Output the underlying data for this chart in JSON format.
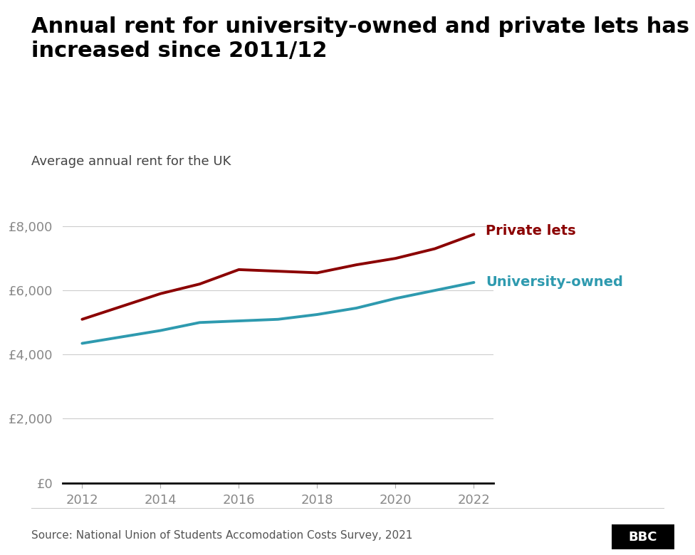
{
  "title": "Annual rent for university-owned and private lets has\nincreased since 2011/12",
  "subtitle": "Average annual rent for the UK",
  "source": "Source: National Union of Students Accomodation Costs Survey, 2021",
  "years": [
    2012,
    2013,
    2014,
    2015,
    2016,
    2017,
    2018,
    2019,
    2020,
    2021,
    2022
  ],
  "private_lets": [
    5100,
    5500,
    5900,
    6200,
    6650,
    6600,
    6550,
    6800,
    7000,
    7300,
    7750
  ],
  "university_owned": [
    4350,
    4550,
    4750,
    5000,
    5050,
    5100,
    5250,
    5450,
    5750,
    6000,
    6250
  ],
  "private_color": "#8B0000",
  "university_color": "#2E9AAF",
  "background_color": "#ffffff",
  "line_width": 2.8,
  "ylim": [
    0,
    9000
  ],
  "yticks": [
    0,
    2000,
    4000,
    6000,
    8000
  ],
  "ytick_labels": [
    "£0",
    "£2,000",
    "£4,000",
    "£6,000",
    "£8,000"
  ],
  "xlim": [
    2011.5,
    2022.5
  ],
  "xticks": [
    2012,
    2014,
    2016,
    2018,
    2020,
    2022
  ],
  "private_label": "Private lets",
  "university_label": "University-owned",
  "title_fontsize": 22,
  "subtitle_fontsize": 13,
  "tick_fontsize": 13,
  "label_fontsize": 14,
  "source_fontsize": 11
}
